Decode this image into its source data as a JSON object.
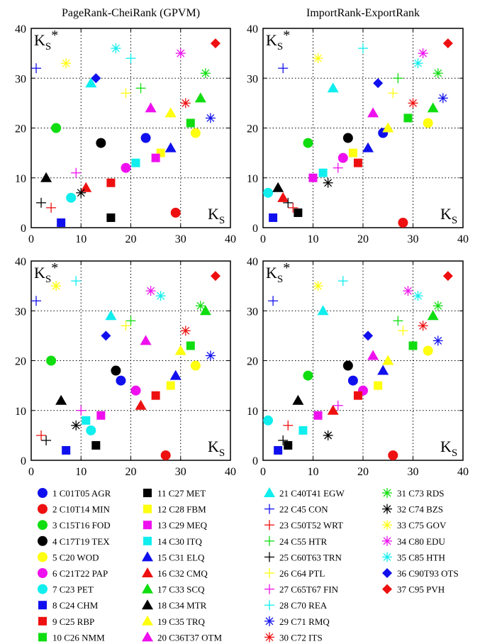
{
  "colors": {
    "blue": "#1010ee",
    "red": "#ee1010",
    "green": "#10dd10",
    "black": "#000000",
    "yellow": "#ffff10",
    "magenta": "#ee10ee",
    "cyan": "#10eeee"
  },
  "sectors": [
    {
      "id": 1,
      "code": "C01T05",
      "abbr": "AGR",
      "marker": "circle",
      "color": "blue"
    },
    {
      "id": 2,
      "code": "C10T14",
      "abbr": "MIN",
      "marker": "circle",
      "color": "red"
    },
    {
      "id": 3,
      "code": "C15T16",
      "abbr": "FOD",
      "marker": "circle",
      "color": "green"
    },
    {
      "id": 4,
      "code": "C17T19",
      "abbr": "TEX",
      "marker": "circle",
      "color": "black"
    },
    {
      "id": 5,
      "code": "C20",
      "abbr": "WOD",
      "marker": "circle",
      "color": "yellow"
    },
    {
      "id": 6,
      "code": "C21T22",
      "abbr": "PAP",
      "marker": "circle",
      "color": "magenta"
    },
    {
      "id": 7,
      "code": "C23",
      "abbr": "PET",
      "marker": "circle",
      "color": "cyan"
    },
    {
      "id": 8,
      "code": "C24",
      "abbr": "CHM",
      "marker": "square",
      "color": "blue"
    },
    {
      "id": 9,
      "code": "C25",
      "abbr": "RBP",
      "marker": "square",
      "color": "red"
    },
    {
      "id": 10,
      "code": "C26",
      "abbr": "NMM",
      "marker": "square",
      "color": "green"
    },
    {
      "id": 11,
      "code": "C27",
      "abbr": "MET",
      "marker": "square",
      "color": "black"
    },
    {
      "id": 12,
      "code": "C28",
      "abbr": "FBM",
      "marker": "square",
      "color": "yellow"
    },
    {
      "id": 13,
      "code": "C29",
      "abbr": "MEQ",
      "marker": "square",
      "color": "magenta"
    },
    {
      "id": 14,
      "code": "C30",
      "abbr": "ITQ",
      "marker": "square",
      "color": "cyan"
    },
    {
      "id": 15,
      "code": "C31",
      "abbr": "ELQ",
      "marker": "triangle",
      "color": "blue"
    },
    {
      "id": 16,
      "code": "C32",
      "abbr": "CMQ",
      "marker": "triangle",
      "color": "red"
    },
    {
      "id": 17,
      "code": "C33",
      "abbr": "SCQ",
      "marker": "triangle",
      "color": "green"
    },
    {
      "id": 18,
      "code": "C34",
      "abbr": "MTR",
      "marker": "triangle",
      "color": "black"
    },
    {
      "id": 19,
      "code": "C35",
      "abbr": "TRQ",
      "marker": "triangle",
      "color": "yellow"
    },
    {
      "id": 20,
      "code": "C36T37",
      "abbr": "OTM",
      "marker": "triangle",
      "color": "magenta"
    },
    {
      "id": 21,
      "code": "C40T41",
      "abbr": "EGW",
      "marker": "triangle",
      "color": "cyan"
    },
    {
      "id": 22,
      "code": "C45",
      "abbr": "CON",
      "marker": "plus",
      "color": "blue"
    },
    {
      "id": 23,
      "code": "C50T52",
      "abbr": "WRT",
      "marker": "plus",
      "color": "red"
    },
    {
      "id": 24,
      "code": "C55",
      "abbr": "HTR",
      "marker": "plus",
      "color": "green"
    },
    {
      "id": 25,
      "code": "C60T63",
      "abbr": "TRN",
      "marker": "plus",
      "color": "black"
    },
    {
      "id": 26,
      "code": "C64",
      "abbr": "PTL",
      "marker": "plus",
      "color": "yellow"
    },
    {
      "id": 27,
      "code": "C65T67",
      "abbr": "FIN",
      "marker": "plus",
      "color": "magenta"
    },
    {
      "id": 28,
      "code": "C70",
      "abbr": "REA",
      "marker": "plus",
      "color": "cyan"
    },
    {
      "id": 29,
      "code": "C71",
      "abbr": "RMQ",
      "marker": "star",
      "color": "blue"
    },
    {
      "id": 30,
      "code": "C72",
      "abbr": "ITS",
      "marker": "star",
      "color": "red"
    },
    {
      "id": 31,
      "code": "C73",
      "abbr": "RDS",
      "marker": "star",
      "color": "green"
    },
    {
      "id": 32,
      "code": "C74",
      "abbr": "BZS",
      "marker": "star",
      "color": "black"
    },
    {
      "id": 33,
      "code": "C75",
      "abbr": "GOV",
      "marker": "star",
      "color": "yellow"
    },
    {
      "id": 34,
      "code": "C80",
      "abbr": "EDU",
      "marker": "star",
      "color": "magenta"
    },
    {
      "id": 35,
      "code": "C85",
      "abbr": "HTH",
      "marker": "star",
      "color": "cyan"
    },
    {
      "id": 36,
      "code": "C90T93",
      "abbr": "OTS",
      "marker": "diamond",
      "color": "blue"
    },
    {
      "id": 37,
      "code": "C95",
      "abbr": "PVH",
      "marker": "diamond",
      "color": "red"
    }
  ],
  "chart_data": [
    {
      "type": "scatter",
      "title": "PageRank-CheiRank (GPVM)",
      "xlabel": "K",
      "ylabel": "K*",
      "label_subscript": "S",
      "xlim": [
        0,
        40
      ],
      "ylim": [
        0,
        40
      ],
      "xticks": [
        "0",
        "10",
        "20",
        "30",
        "40"
      ],
      "yticks": [
        "0",
        "10",
        "20",
        "30",
        "40"
      ],
      "grid": true,
      "points": [
        [
          23,
          18
        ],
        [
          29,
          3
        ],
        [
          5,
          20
        ],
        [
          14,
          17
        ],
        [
          33,
          19
        ],
        [
          19,
          12
        ],
        [
          8,
          6
        ],
        [
          6,
          1
        ],
        [
          16,
          9
        ],
        [
          32,
          21
        ],
        [
          16,
          2
        ],
        [
          26,
          15
        ],
        [
          25,
          14
        ],
        [
          21,
          13
        ],
        [
          28,
          16
        ],
        [
          11,
          8
        ],
        [
          34,
          26
        ],
        [
          3,
          10
        ],
        [
          28,
          23
        ],
        [
          24,
          24
        ],
        [
          12,
          29
        ],
        [
          1,
          32
        ],
        [
          4,
          4
        ],
        [
          22,
          28
        ],
        [
          2,
          5
        ],
        [
          19,
          27
        ],
        [
          9,
          11
        ],
        [
          20,
          34
        ],
        [
          36,
          22
        ],
        [
          31,
          25
        ],
        [
          35,
          31
        ],
        [
          10,
          7
        ],
        [
          7,
          33
        ],
        [
          30,
          35
        ],
        [
          17,
          36
        ],
        [
          13,
          30
        ],
        [
          37,
          37
        ]
      ]
    },
    {
      "type": "scatter",
      "title": "ImportRank-ExportRank",
      "xlabel": "K",
      "ylabel": "K*",
      "label_subscript": "S",
      "xlim": [
        0,
        40
      ],
      "ylim": [
        0,
        40
      ],
      "xticks": [
        "0",
        "10",
        "20",
        "30",
        "40"
      ],
      "yticks": [
        "0",
        "10",
        "20",
        "30",
        "40"
      ],
      "grid": true,
      "points": [
        [
          24,
          19
        ],
        [
          28,
          1
        ],
        [
          9,
          17
        ],
        [
          17,
          18
        ],
        [
          33,
          21
        ],
        [
          16,
          14
        ],
        [
          1,
          7
        ],
        [
          2,
          2
        ],
        [
          19,
          13
        ],
        [
          29,
          22
        ],
        [
          7,
          3
        ],
        [
          18,
          15
        ],
        [
          10,
          10
        ],
        [
          12,
          11
        ],
        [
          21,
          16
        ],
        [
          4,
          6
        ],
        [
          34,
          24
        ],
        [
          3,
          8
        ],
        [
          25,
          20
        ],
        [
          22,
          23
        ],
        [
          14,
          28
        ],
        [
          4,
          32
        ],
        [
          6,
          4
        ],
        [
          27,
          30
        ],
        [
          5,
          5
        ],
        [
          26,
          27
        ],
        [
          15,
          12
        ],
        [
          20,
          36
        ],
        [
          36,
          26
        ],
        [
          30,
          25
        ],
        [
          35,
          31
        ],
        [
          13,
          9
        ],
        [
          11,
          34
        ],
        [
          32,
          35
        ],
        [
          31,
          33
        ],
        [
          23,
          29
        ],
        [
          37,
          37
        ]
      ]
    },
    {
      "type": "scatter",
      "title": "",
      "xlabel": "K",
      "ylabel": "K*",
      "label_subscript": "S",
      "xlim": [
        0,
        40
      ],
      "ylim": [
        0,
        40
      ],
      "xticks": [
        "0",
        "10",
        "20",
        "30",
        "40"
      ],
      "yticks": [
        "0",
        "10",
        "20",
        "30",
        "40"
      ],
      "grid": true,
      "points": [
        [
          18,
          16
        ],
        [
          27,
          1
        ],
        [
          4,
          20
        ],
        [
          17,
          18
        ],
        [
          33,
          19
        ],
        [
          21,
          14
        ],
        [
          12,
          6
        ],
        [
          7,
          2
        ],
        [
          25,
          13
        ],
        [
          32,
          23
        ],
        [
          13,
          3
        ],
        [
          28,
          15
        ],
        [
          14,
          9
        ],
        [
          11,
          8
        ],
        [
          29,
          17
        ],
        [
          22,
          11
        ],
        [
          35,
          30
        ],
        [
          6,
          12
        ],
        [
          30,
          22
        ],
        [
          23,
          24
        ],
        [
          16,
          29
        ],
        [
          1,
          32
        ],
        [
          2,
          5
        ],
        [
          20,
          28
        ],
        [
          3,
          4
        ],
        [
          19,
          27
        ],
        [
          10,
          10
        ],
        [
          9,
          36
        ],
        [
          36,
          21
        ],
        [
          31,
          26
        ],
        [
          34,
          31
        ],
        [
          9,
          7
        ],
        [
          5,
          35
        ],
        [
          24,
          34
        ],
        [
          26,
          33
        ],
        [
          15,
          25
        ],
        [
          37,
          37
        ]
      ]
    },
    {
      "type": "scatter",
      "title": "",
      "xlabel": "K",
      "ylabel": "K*",
      "label_subscript": "S",
      "xlim": [
        0,
        40
      ],
      "ylim": [
        0,
        40
      ],
      "xticks": [
        "0",
        "10",
        "20",
        "30",
        "40"
      ],
      "yticks": [
        "0",
        "10",
        "20",
        "30",
        "40"
      ],
      "grid": true,
      "points": [
        [
          18,
          16
        ],
        [
          26,
          1
        ],
        [
          9,
          17
        ],
        [
          17,
          19
        ],
        [
          33,
          22
        ],
        [
          20,
          14
        ],
        [
          1,
          8
        ],
        [
          3,
          2
        ],
        [
          19,
          13
        ],
        [
          30,
          23
        ],
        [
          5,
          3
        ],
        [
          23,
          15
        ],
        [
          11,
          9
        ],
        [
          8,
          6
        ],
        [
          24,
          18
        ],
        [
          14,
          10
        ],
        [
          34,
          29
        ],
        [
          7,
          12
        ],
        [
          25,
          20
        ],
        [
          22,
          21
        ],
        [
          12,
          30
        ],
        [
          2,
          32
        ],
        [
          5,
          7
        ],
        [
          27,
          28
        ],
        [
          4,
          4
        ],
        [
          28,
          26
        ],
        [
          15,
          11
        ],
        [
          16,
          36
        ],
        [
          35,
          24
        ],
        [
          32,
          27
        ],
        [
          35,
          31
        ],
        [
          13,
          5
        ],
        [
          11,
          35
        ],
        [
          29,
          34
        ],
        [
          31,
          33
        ],
        [
          21,
          25
        ],
        [
          37,
          37
        ]
      ]
    }
  ]
}
